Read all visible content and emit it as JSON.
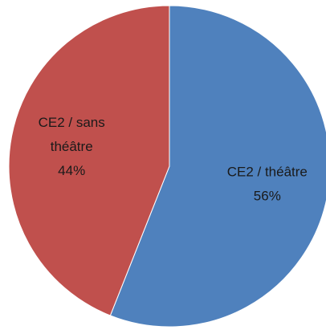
{
  "chart_data": {
    "type": "pie",
    "categories": [
      "CE2 / théâtre",
      "CE2 / sans théâtre"
    ],
    "values": [
      56,
      44
    ],
    "value_labels": [
      "56%",
      "44%"
    ],
    "colors": [
      "#4f81bd",
      "#c0504d"
    ]
  }
}
